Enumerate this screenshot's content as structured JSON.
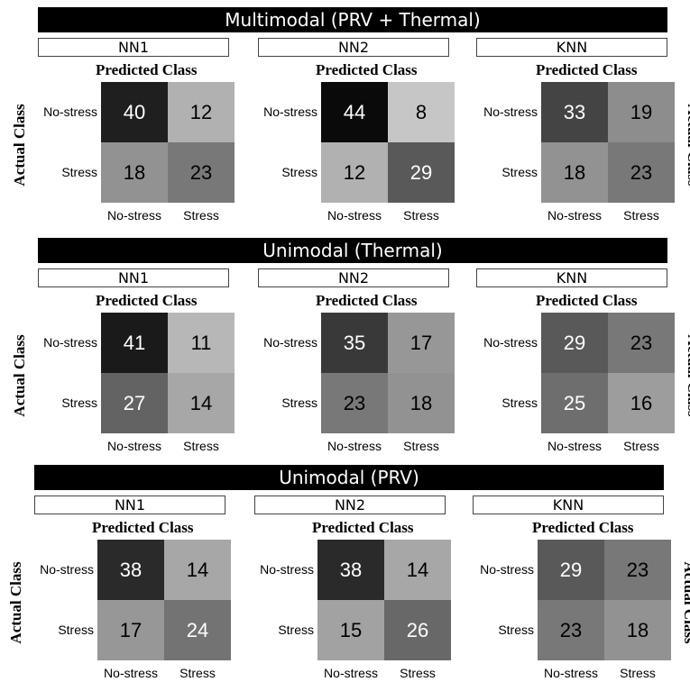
{
  "sections": [
    {
      "title": "Multimodal (PRV + Thermal)",
      "panels": [
        {
          "model": "NN1",
          "values": [
            [
              40,
              12
            ],
            [
              18,
              23
            ]
          ]
        },
        {
          "model": "NN2",
          "values": [
            [
              44,
              8
            ],
            [
              12,
              29
            ]
          ]
        },
        {
          "model": "KNN",
          "values": [
            [
              33,
              19
            ],
            [
              18,
              23
            ]
          ]
        }
      ]
    },
    {
      "title": "Unimodal (Thermal)",
      "panels": [
        {
          "model": "NN1",
          "values": [
            [
              41,
              11
            ],
            [
              27,
              14
            ]
          ]
        },
        {
          "model": "NN2",
          "values": [
            [
              35,
              17
            ],
            [
              23,
              18
            ]
          ]
        },
        {
          "model": "KNN",
          "values": [
            [
              29,
              23
            ],
            [
              25,
              16
            ]
          ]
        }
      ]
    },
    {
      "title": "Unimodal (PRV)",
      "panels": [
        {
          "model": "NN1",
          "values": [
            [
              38,
              14
            ],
            [
              17,
              24
            ]
          ]
        },
        {
          "model": "NN2",
          "values": [
            [
              38,
              14
            ],
            [
              15,
              26
            ]
          ]
        },
        {
          "model": "KNN",
          "values": [
            [
              29,
              23
            ],
            [
              23,
              18
            ]
          ]
        }
      ]
    }
  ],
  "labels": {
    "predicted": "Predicted Class",
    "actual": "Actual Class",
    "classes": [
      "No-stress",
      "Stress"
    ]
  },
  "chart_data": {
    "type": "heatmap",
    "row_label": "Actual Class",
    "col_label": "Predicted Class",
    "rows": [
      "No-stress",
      "Stress"
    ],
    "cols": [
      "No-stress",
      "Stress"
    ],
    "color_scale": "grayscale, darker = higher count",
    "matrices": [
      {
        "condition": "Multimodal (PRV + Thermal)",
        "model": "NN1",
        "values": [
          [
            40,
            12
          ],
          [
            18,
            23
          ]
        ]
      },
      {
        "condition": "Multimodal (PRV + Thermal)",
        "model": "NN2",
        "values": [
          [
            44,
            8
          ],
          [
            12,
            29
          ]
        ]
      },
      {
        "condition": "Multimodal (PRV + Thermal)",
        "model": "KNN",
        "values": [
          [
            33,
            19
          ],
          [
            18,
            23
          ]
        ]
      },
      {
        "condition": "Unimodal (Thermal)",
        "model": "NN1",
        "values": [
          [
            41,
            11
          ],
          [
            27,
            14
          ]
        ]
      },
      {
        "condition": "Unimodal (Thermal)",
        "model": "NN2",
        "values": [
          [
            35,
            17
          ],
          [
            23,
            18
          ]
        ]
      },
      {
        "condition": "Unimodal (Thermal)",
        "model": "KNN",
        "values": [
          [
            29,
            23
          ],
          [
            25,
            16
          ]
        ]
      },
      {
        "condition": "Unimodal (PRV)",
        "model": "NN1",
        "values": [
          [
            38,
            14
          ],
          [
            17,
            24
          ]
        ]
      },
      {
        "condition": "Unimodal (PRV)",
        "model": "NN2",
        "values": [
          [
            38,
            14
          ],
          [
            15,
            26
          ]
        ]
      },
      {
        "condition": "Unimodal (PRV)",
        "model": "KNN",
        "values": [
          [
            29,
            23
          ],
          [
            23,
            18
          ]
        ]
      }
    ]
  }
}
